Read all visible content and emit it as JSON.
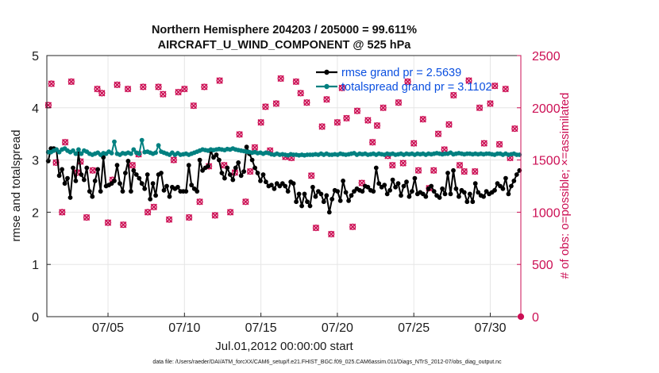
{
  "chart_data": {
    "type": "line",
    "title_line1": "Northern Hemisphere 204203 / 205000 = 99.611%",
    "title_line2": "AIRCRAFT_U_WIND_COMPONENT @ 525 hPa",
    "xlabel": "Jul.01,2012 00:00:00 start",
    "ylabel_left": "rmse and totalspread",
    "ylabel_right": "# of obs: o=possible; ×=assimilated",
    "footer": "data file: /Users/raeder/DAI/ATM_forcXX/CAM6_setup/f.e21.FHIST_BGC.f09_025.CAM6assim.011/Diags_NTrS_2012-07/obs_diag_output.nc",
    "xlim": [
      1,
      32
    ],
    "ylim_left": [
      0,
      5
    ],
    "ylim_right": [
      0,
      2500
    ],
    "x_ticks": [
      5,
      10,
      15,
      20,
      25,
      30
    ],
    "x_tick_labels": [
      "07/05",
      "07/10",
      "07/15",
      "07/20",
      "07/25",
      "07/30"
    ],
    "y_left_ticks": [
      "0",
      "1",
      "2",
      "3",
      "4",
      "5"
    ],
    "y_right_ticks": [
      "0",
      "500",
      "1000",
      "1500",
      "2000",
      "2500"
    ],
    "colors": {
      "rmse": "#000000",
      "spread": "#008080",
      "obs": "#cc0f54",
      "legend_text": "#0a4fe0",
      "grid": "#e6e6e6"
    },
    "series": [
      {
        "name": "rmse grand pr = 2.5639",
        "axis": "left",
        "color": "#000000",
        "values": [
          2.98,
          3.22,
          3.22,
          3.2,
          2.7,
          2.82,
          2.55,
          2.65,
          2.28,
          2.85,
          2.6,
          3.12,
          2.72,
          2.62,
          2.85,
          2.4,
          2.3,
          2.6,
          2.82,
          2.4,
          3.05,
          2.5,
          2.52,
          2.55,
          2.6,
          2.9,
          2.55,
          2.4,
          2.75,
          2.98,
          2.4,
          2.8,
          2.72,
          2.65,
          2.55,
          2.45,
          2.72,
          2.25,
          2.55,
          2.32,
          2.72,
          2.75,
          2.42,
          2.5,
          2.3,
          2.48,
          2.45,
          2.48,
          2.4,
          2.4,
          2.4,
          2.9,
          2.52,
          2.45,
          2.4,
          3.0,
          2.8,
          2.85,
          2.88,
          3.17,
          3.05,
          3.1,
          3.0,
          2.75,
          2.65,
          2.85,
          2.72,
          2.62,
          2.85,
          2.95,
          2.7,
          2.78,
          3.25,
          3.12,
          3.0,
          2.85,
          2.75,
          2.6,
          2.72,
          2.58,
          2.5,
          2.52,
          2.45,
          2.55,
          2.5,
          2.55,
          2.5,
          2.4,
          2.58,
          2.55,
          2.2,
          2.35,
          2.12,
          2.35,
          2.2,
          2.12,
          2.48,
          2.3,
          2.4,
          2.35,
          2.2,
          2.32,
          2.0,
          2.25,
          2.42,
          2.4,
          2.22,
          2.6,
          2.38,
          2.22,
          2.32,
          2.4,
          2.45,
          2.42,
          2.4,
          2.5,
          2.48,
          2.42,
          2.4,
          2.85,
          2.55,
          2.48,
          2.52,
          2.35,
          2.42,
          2.62,
          2.48,
          2.55,
          2.32,
          2.5,
          2.58,
          2.3,
          2.4,
          2.65,
          2.35,
          2.38,
          2.35,
          2.3,
          2.45,
          2.5,
          2.4,
          2.32,
          2.28,
          2.45,
          2.35,
          2.75,
          2.35,
          2.8,
          2.45,
          2.3,
          2.42,
          2.38,
          2.2,
          2.35,
          2.2,
          2.55,
          2.38,
          2.32,
          2.3,
          2.4,
          2.35,
          2.38,
          2.42,
          2.55,
          2.5,
          2.45,
          2.65,
          2.35,
          2.5,
          2.6,
          2.72,
          2.8
        ]
      },
      {
        "name": "totalspread grand pr = 3.1102",
        "axis": "left",
        "color": "#008080",
        "values": [
          3.15,
          3.15,
          3.18,
          3.2,
          3.15,
          3.2,
          3.22,
          3.18,
          3.15,
          3.18,
          3.12,
          3.2,
          3.12,
          3.18,
          3.16,
          3.12,
          3.1,
          3.12,
          3.14,
          3.1,
          3.13,
          3.12,
          3.16,
          3.13,
          3.35,
          3.12,
          3.1,
          3.13,
          3.12,
          3.14,
          3.12,
          3.2,
          3.14,
          3.12,
          3.38,
          3.15,
          3.16,
          3.14,
          3.12,
          3.14,
          3.28,
          3.16,
          3.14,
          3.12,
          3.1,
          3.14,
          3.1,
          3.13,
          3.1,
          3.11,
          3.12,
          3.1,
          3.12,
          3.14,
          3.16,
          3.18,
          3.2,
          3.19,
          3.18,
          3.2,
          3.19,
          3.2,
          3.21,
          3.2,
          3.19,
          3.21,
          3.2,
          3.22,
          3.2,
          3.19,
          3.18,
          3.17,
          3.16,
          3.15,
          3.14,
          3.15,
          3.13,
          3.14,
          3.12,
          3.14,
          3.13,
          3.11,
          3.1,
          3.12,
          3.1,
          3.11,
          3.1,
          3.09,
          3.11,
          3.1,
          3.1,
          3.09,
          3.1,
          3.09,
          3.1,
          3.1,
          3.1,
          3.11,
          3.1,
          3.12,
          3.1,
          3.12,
          3.1,
          3.1,
          3.11,
          3.1,
          3.12,
          3.11,
          3.1,
          3.11,
          3.12,
          3.13,
          3.1,
          3.12,
          3.11,
          3.12,
          3.1,
          3.11,
          3.12,
          3.1,
          3.12,
          3.11,
          3.1,
          3.12,
          3.11,
          3.12,
          3.1,
          3.11,
          3.12,
          3.1,
          3.12,
          3.11,
          3.12,
          3.1,
          3.12,
          3.11,
          3.12,
          3.1,
          3.12,
          3.11,
          3.12,
          3.13,
          3.12,
          3.11,
          3.12,
          3.12,
          3.14,
          3.11,
          3.12,
          3.13,
          3.12,
          3.11,
          3.12,
          3.12,
          3.11,
          3.12,
          3.11,
          3.12,
          3.11,
          3.12,
          3.12,
          3.11,
          3.1,
          3.12,
          3.12,
          3.1,
          3.12,
          3.1,
          3.11,
          3.12,
          3.1,
          3.1
        ]
      },
      {
        "name": "# of obs possible",
        "axis": "right",
        "color": "#cc0f54",
        "marker": "o",
        "x": [
          1.1,
          1.3,
          1.6,
          2.0,
          2.2,
          2.6,
          3.0,
          3.2,
          3.6,
          4.0,
          4.3,
          4.6,
          5.0,
          5.3,
          5.6,
          6.0,
          6.3,
          6.6,
          7.0,
          7.3,
          7.6,
          8.0,
          8.3,
          8.6,
          9.0,
          9.3,
          9.6,
          10.0,
          10.3,
          10.6,
          11.0,
          11.3,
          11.6,
          12.0,
          12.3,
          12.6,
          13.0,
          13.3,
          13.6,
          14.0,
          14.3,
          14.6,
          15.0,
          15.3,
          15.6,
          16.0,
          16.3,
          16.6,
          17.0,
          17.3,
          17.6,
          18.0,
          18.3,
          18.6,
          19.0,
          19.3,
          19.6,
          20.0,
          20.3,
          20.6,
          21.0,
          21.3,
          21.6,
          22.0,
          22.3,
          22.6,
          23.0,
          23.3,
          23.6,
          24.0,
          24.3,
          24.6,
          25.0,
          25.3,
          25.6,
          26.0,
          26.3,
          26.6,
          27.0,
          27.3,
          27.6,
          28.0,
          28.3,
          28.6,
          29.0,
          29.3,
          29.6,
          30.0,
          30.3,
          30.6,
          31.0,
          31.3,
          31.6
        ],
        "values": [
          2025,
          2230,
          1475,
          1000,
          1670,
          2250,
          1380,
          1485,
          950,
          1400,
          2180,
          2140,
          900,
          1310,
          2220,
          880,
          2180,
          1450,
          1555,
          2200,
          1000,
          1050,
          2200,
          2130,
          930,
          1500,
          2150,
          2180,
          950,
          2020,
          1100,
          2200,
          1440,
          970,
          2260,
          1450,
          1000,
          1380,
          1745,
          1100,
          1390,
          1620,
          1860,
          2010,
          1590,
          2040,
          2280,
          1530,
          1520,
          2250,
          2140,
          2050,
          1350,
          850,
          1820,
          2080,
          790,
          1860,
          2190,
          1900,
          860,
          1970,
          1280,
          1880,
          1670,
          1830,
          2000,
          1540,
          1450,
          2050,
          1470,
          2250,
          1660,
          1400,
          1890,
          1230,
          1400,
          1750,
          1600,
          1840,
          2120,
          1450,
          1390,
          2260,
          1390,
          2000,
          1660,
          2040,
          2210,
          1650,
          2180,
          1520,
          1800
        ]
      },
      {
        "name": "# of obs assimilated",
        "axis": "right",
        "color": "#cc0f54",
        "marker": "x",
        "x": [
          1.1,
          1.3,
          1.6,
          2.0,
          2.2,
          2.6,
          3.0,
          3.2,
          3.6,
          4.0,
          4.3,
          4.6,
          5.0,
          5.3,
          5.6,
          6.0,
          6.3,
          6.6,
          7.0,
          7.3,
          7.6,
          8.0,
          8.3,
          8.6,
          9.0,
          9.3,
          9.6,
          10.0,
          10.3,
          10.6,
          11.0,
          11.3,
          11.6,
          12.0,
          12.3,
          12.6,
          13.0,
          13.3,
          13.6,
          14.0,
          14.3,
          14.6,
          15.0,
          15.3,
          15.6,
          16.0,
          16.3,
          16.6,
          17.0,
          17.3,
          17.6,
          18.0,
          18.3,
          18.6,
          19.0,
          19.3,
          19.6,
          20.0,
          20.3,
          20.6,
          21.0,
          21.3,
          21.6,
          22.0,
          22.3,
          22.6,
          23.0,
          23.3,
          23.6,
          24.0,
          24.3,
          24.6,
          25.0,
          25.3,
          25.6,
          26.0,
          26.3,
          26.6,
          27.0,
          27.3,
          27.6,
          28.0,
          28.3,
          28.6,
          29.0,
          29.3,
          29.6,
          30.0,
          30.3,
          30.6,
          31.0,
          31.3,
          31.6
        ],
        "values": [
          2025,
          2230,
          1475,
          1000,
          1670,
          2250,
          1380,
          1485,
          950,
          1400,
          2180,
          2140,
          900,
          1310,
          2220,
          880,
          2180,
          1450,
          1555,
          2200,
          1000,
          1050,
          2200,
          2130,
          930,
          1500,
          2150,
          2180,
          950,
          2020,
          1100,
          2200,
          1440,
          970,
          2260,
          1450,
          1000,
          1380,
          1745,
          1100,
          1390,
          1620,
          1860,
          2010,
          1590,
          2040,
          2280,
          1530,
          1520,
          2250,
          2140,
          2050,
          1350,
          850,
          1820,
          2080,
          790,
          1860,
          2190,
          1900,
          860,
          1970,
          1280,
          1880,
          1670,
          1830,
          2000,
          1540,
          1450,
          2050,
          1470,
          2250,
          1660,
          1400,
          1890,
          1230,
          1400,
          1750,
          1600,
          1840,
          2120,
          1450,
          1390,
          2260,
          1390,
          2000,
          1660,
          2040,
          2210,
          1650,
          2180,
          1520,
          1800
        ]
      }
    ],
    "legend": {
      "location": "top-right",
      "entries": [
        "rmse grand pr = 2.5639",
        "totalspread grand pr = 3.1102"
      ]
    }
  }
}
